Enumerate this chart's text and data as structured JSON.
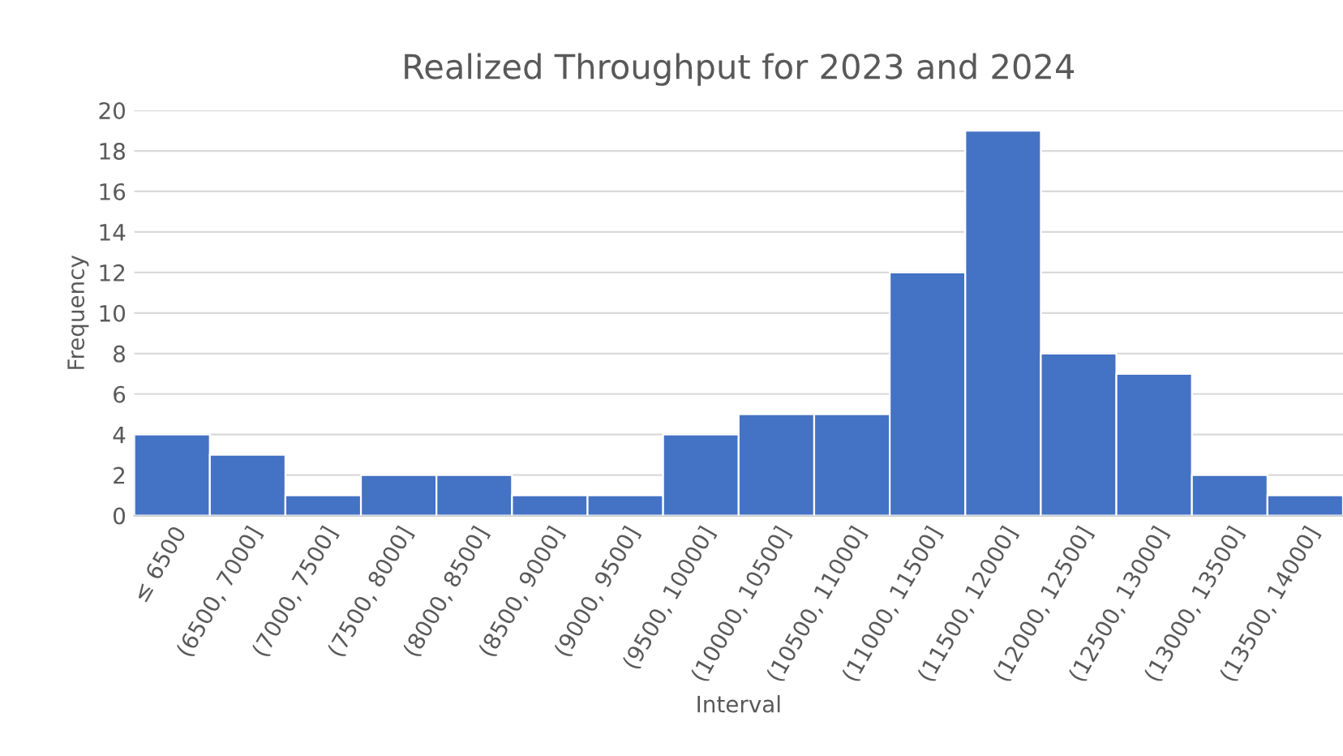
{
  "chart_data": {
    "type": "bar",
    "title": "Realized Throughput for 2023 and 2024",
    "xlabel": "Interval",
    "ylabel": "Frequency",
    "categories": [
      "≤ 6500",
      "(6500, 7000]",
      "(7000, 7500]",
      "(7500, 8000]",
      "(8000, 8500]",
      "(8500, 9000]",
      "(9000, 9500]",
      "(9500, 10000]",
      "(10000, 10500]",
      "(10500, 11000]",
      "(11000, 11500]",
      "(11500, 12000]",
      "(12000, 12500]",
      "(12500, 13000]",
      "(13000, 13500]",
      "(13500, 14000]"
    ],
    "values": [
      4,
      3,
      1,
      2,
      2,
      1,
      1,
      4,
      5,
      5,
      12,
      19,
      8,
      7,
      2,
      1
    ],
    "color": "#4472c4",
    "ylim": [
      0,
      20
    ],
    "yticks": [
      0,
      2,
      4,
      6,
      8,
      10,
      12,
      14,
      16,
      18,
      20
    ],
    "grid": "y"
  }
}
